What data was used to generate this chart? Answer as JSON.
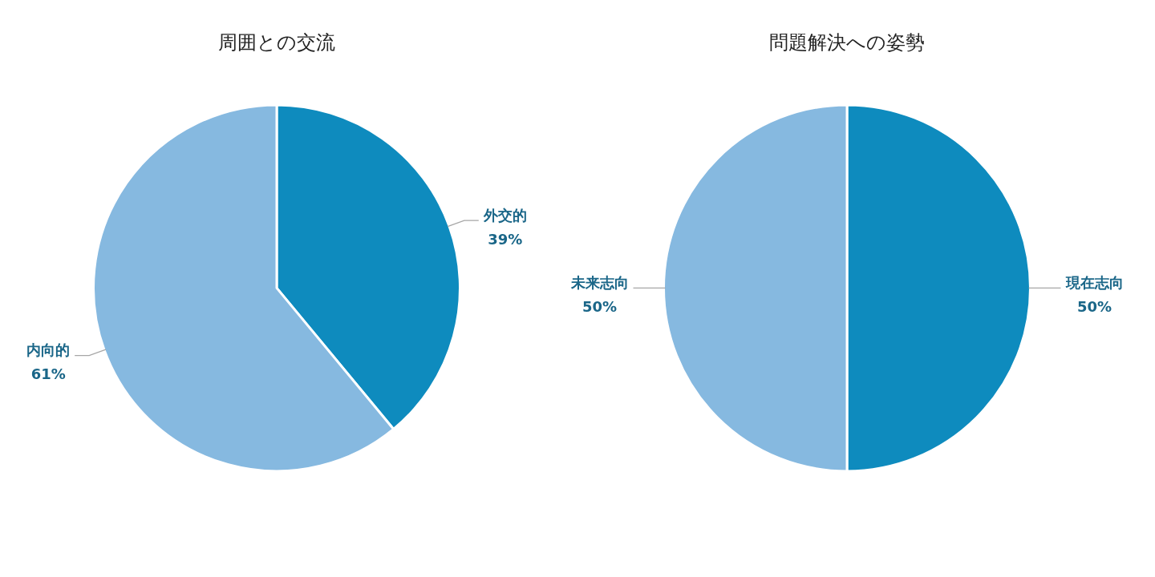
{
  "chart_data": [
    {
      "type": "pie",
      "title": "周囲との交流",
      "categories": [
        "外交的",
        "内向的"
      ],
      "values": [
        39,
        61
      ],
      "colors": [
        "#0e8bbe",
        "#86b9e0"
      ],
      "value_labels": [
        "39%",
        "61%"
      ],
      "legend": false
    },
    {
      "type": "pie",
      "title": "問題解決への姿勢",
      "categories": [
        "現在志向",
        "未来志向"
      ],
      "values": [
        50,
        50
      ],
      "colors": [
        "#0e8bbe",
        "#86b9e0"
      ],
      "value_labels": [
        "50%",
        "50%"
      ],
      "legend": false
    }
  ]
}
